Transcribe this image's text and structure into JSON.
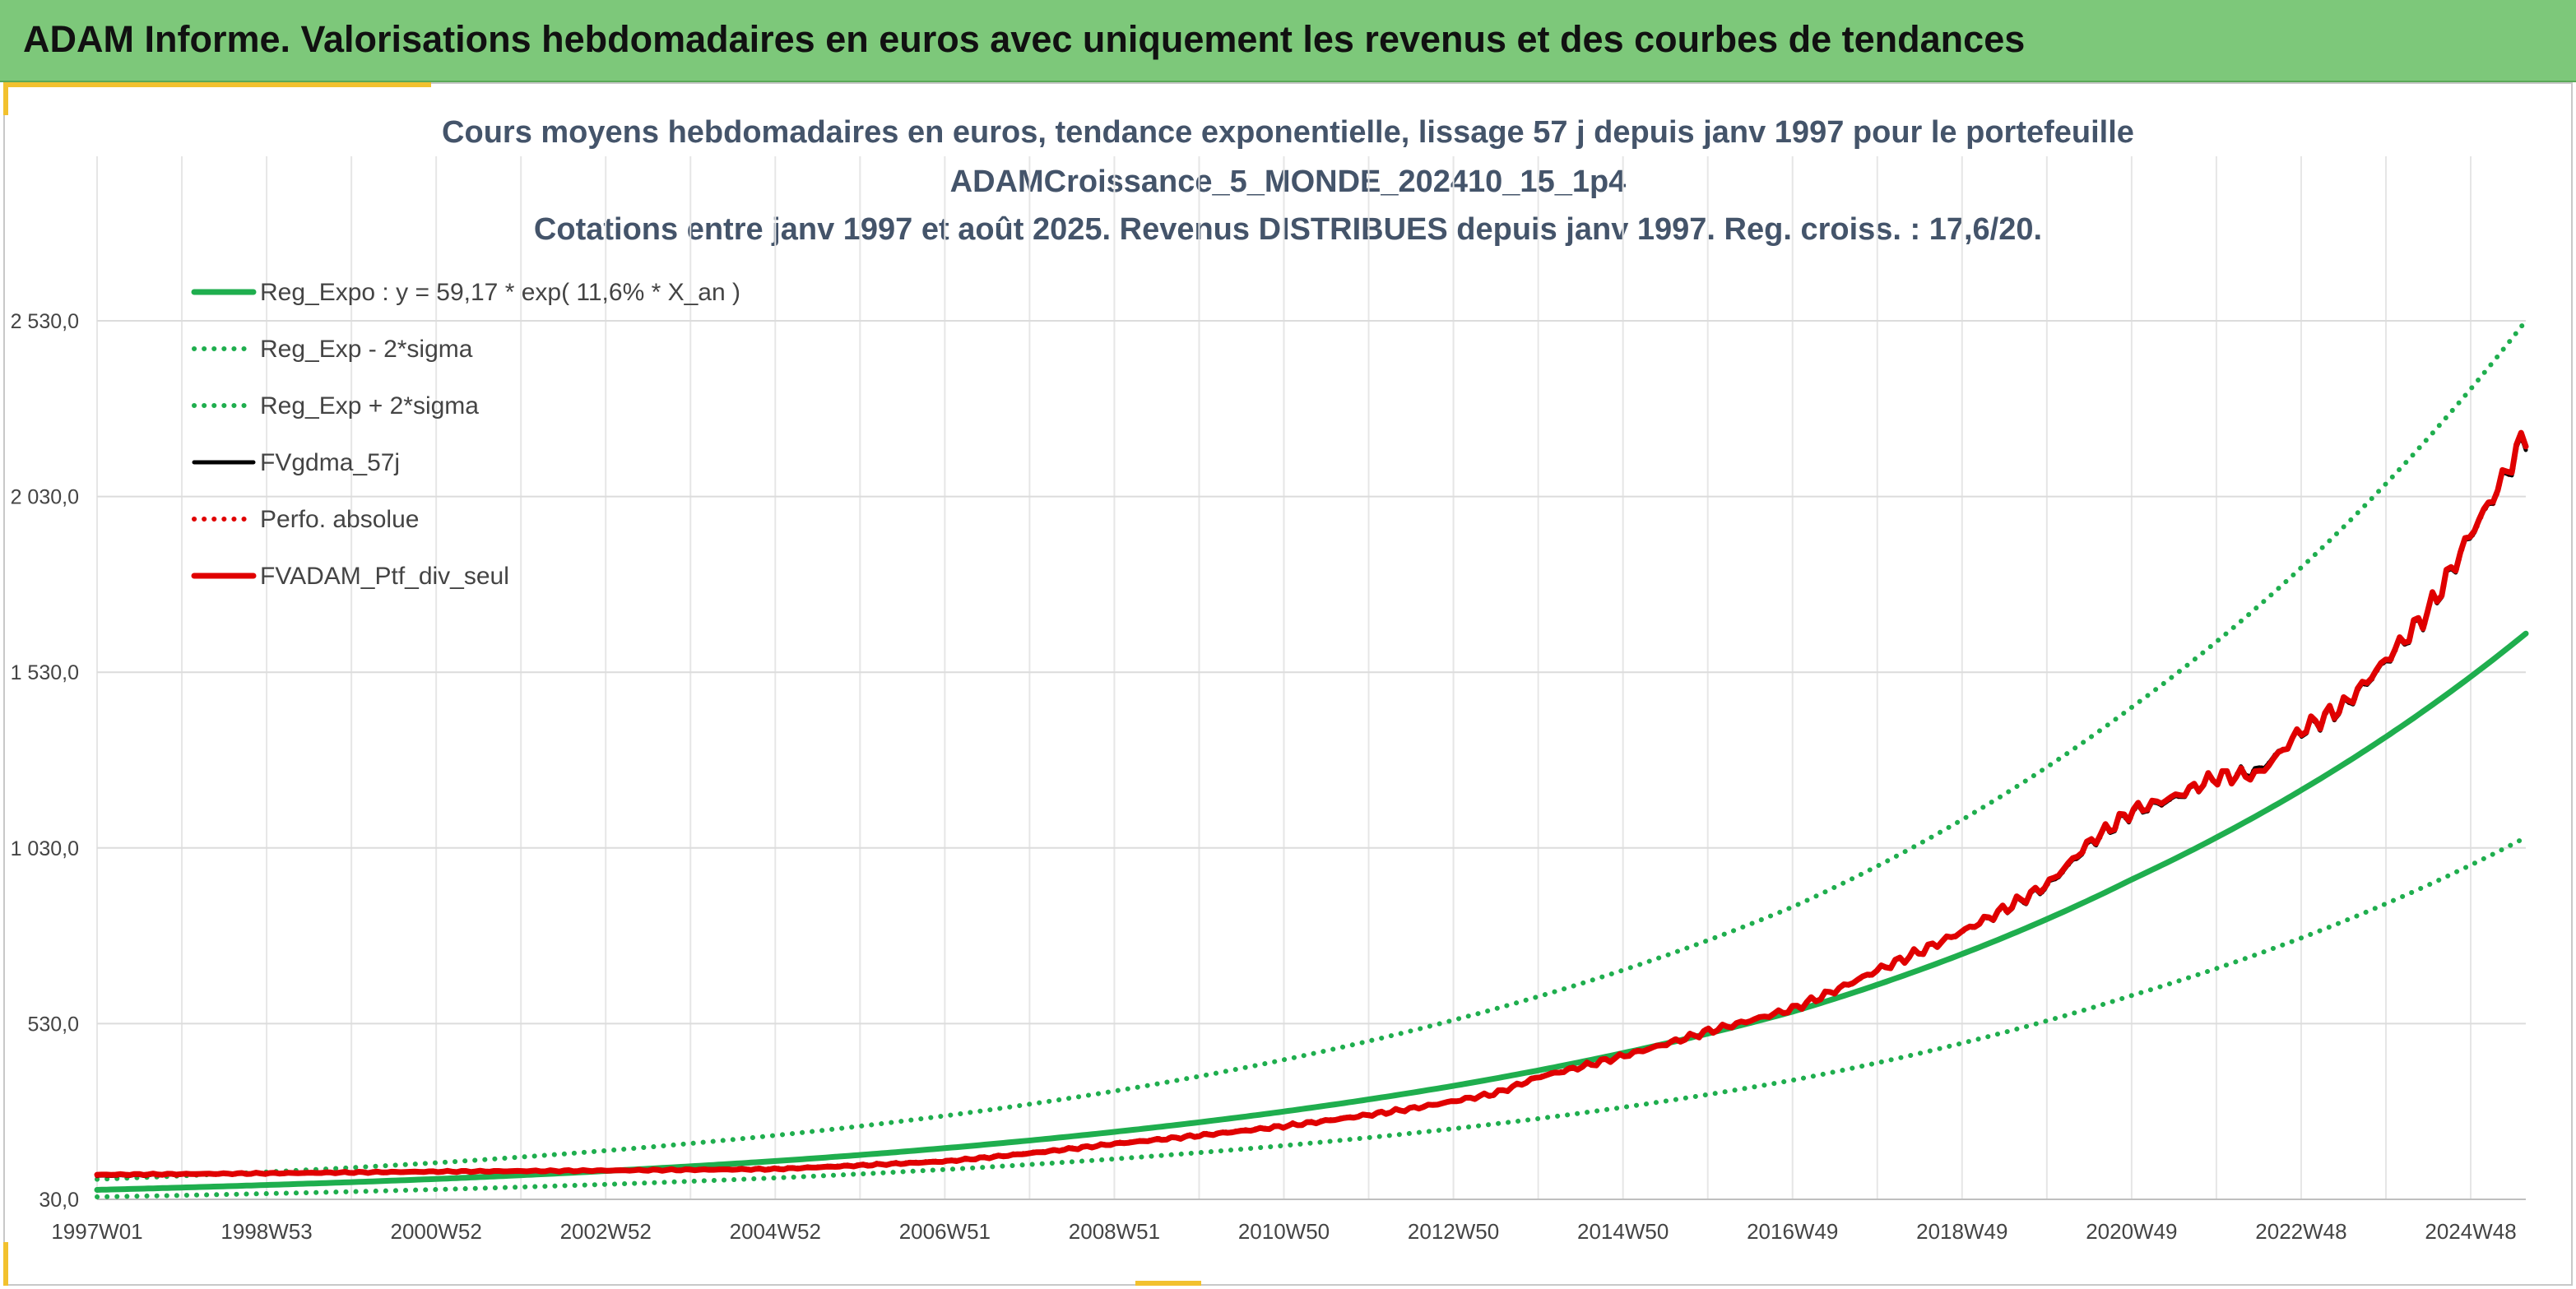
{
  "banner": {
    "title": "ADAM Informe. Valorisations hebdomadaires en euros avec uniquement les revenus et des courbes de tendances"
  },
  "colors": {
    "banner_bg": "#7dc87a",
    "title_text": "#44546a",
    "reg_green": "#1fae4e",
    "black": "#000000",
    "red": "#e00000",
    "grid": "#e3e3e3",
    "accent_yellow": "#f2c12e"
  },
  "chart_data": {
    "type": "line",
    "title": [
      "Cours moyens hebdomadaires en euros, tendance exponentielle, lissage 57 j depuis janv 1997 pour le portefeuille",
      "ADAMCroissance_5_MONDE_202410_15_1p4",
      "Cotations entre janv 1997 et août 2025. Revenus DISTRIBUES depuis janv 1997. Reg. croiss. : 17,6/20."
    ],
    "xlabel": "",
    "ylabel": "",
    "ylim": [
      30,
      2530
    ],
    "yticks": [
      30,
      530,
      1030,
      1530,
      2030,
      2530
    ],
    "ytick_labels": [
      "30,0",
      "530,0",
      "1 030,0",
      "1 530,0",
      "2 030,0",
      "2 530,0"
    ],
    "x_range_years": [
      1997.0,
      2025.65
    ],
    "xtick_years": [
      1997.0,
      1999.0,
      2001.0,
      2003.0,
      2005.0,
      2007.0,
      2009.0,
      2011.0,
      2013.0,
      2015.0,
      2017.0,
      2019.0,
      2021.0,
      2023.0,
      2025.0
    ],
    "xtick_labels": [
      "1997W01",
      "1998W53",
      "2000W52",
      "2002W52",
      "2004W52",
      "2006W51",
      "2008W51",
      "2010W50",
      "2012W50",
      "2014W50",
      "2016W49",
      "2018W49",
      "2020W49",
      "2022W48",
      "2024W48"
    ],
    "grid": true,
    "legend_position": "top-left",
    "series": [
      {
        "name": "Reg_Expo : y = 59,17 * exp( 11,6% *  X_an )",
        "style": "solid-thick",
        "color": "#1fae4e",
        "points": [
          [
            1997.0,
            57
          ],
          [
            2001.0,
            88
          ],
          [
            2005.0,
            139
          ],
          [
            2009.0,
            222
          ],
          [
            2013.0,
            353
          ],
          [
            2017.0,
            564
          ],
          [
            2021.0,
            940
          ],
          [
            2025.65,
            1640
          ]
        ]
      },
      {
        "name": "Reg_Exp - 2*sigma",
        "style": "dotted",
        "color": "#1fae4e",
        "points": [
          [
            1997.0,
            37
          ],
          [
            2001.0,
            58
          ],
          [
            2005.0,
            91
          ],
          [
            2009.0,
            145
          ],
          [
            2013.0,
            231
          ],
          [
            2017.0,
            369
          ],
          [
            2021.0,
            610
          ],
          [
            2025.65,
            1060
          ]
        ]
      },
      {
        "name": "Reg_Exp + 2*sigma",
        "style": "dotted",
        "color": "#1fae4e",
        "points": [
          [
            1997.0,
            87
          ],
          [
            2001.0,
            134
          ],
          [
            2005.0,
            212
          ],
          [
            2009.0,
            338
          ],
          [
            2013.0,
            540
          ],
          [
            2017.0,
            862
          ],
          [
            2021.0,
            1430
          ],
          [
            2025.65,
            2530
          ]
        ]
      },
      {
        "name": "FVgdma_57j",
        "style": "solid",
        "color": "#000000",
        "points": [
          [
            1997.0,
            97
          ],
          [
            1999.0,
            103
          ],
          [
            2001.0,
            108
          ],
          [
            2003.0,
            113
          ],
          [
            2005.0,
            118
          ],
          [
            2007.0,
            140
          ],
          [
            2009.0,
            190
          ],
          [
            2011.0,
            240
          ],
          [
            2012.5,
            290
          ],
          [
            2013.5,
            330
          ],
          [
            2014.0,
            380
          ],
          [
            2015.0,
            440
          ],
          [
            2016.0,
            510
          ],
          [
            2017.0,
            570
          ],
          [
            2018.0,
            680
          ],
          [
            2019.0,
            790
          ],
          [
            2020.0,
            920
          ],
          [
            2020.5,
            1040
          ],
          [
            2021.0,
            1130
          ],
          [
            2021.5,
            1170
          ],
          [
            2022.0,
            1230
          ],
          [
            2022.5,
            1250
          ],
          [
            2023.0,
            1360
          ],
          [
            2023.5,
            1430
          ],
          [
            2024.0,
            1560
          ],
          [
            2024.5,
            1700
          ],
          [
            2025.0,
            1920
          ],
          [
            2025.3,
            2040
          ],
          [
            2025.65,
            2200
          ]
        ]
      },
      {
        "name": "Perfo. absolue",
        "style": "dotted",
        "color": "#e00000",
        "points": [
          [
            1997.0,
            97
          ],
          [
            1999.0,
            103
          ],
          [
            2001.0,
            108
          ],
          [
            2003.0,
            113
          ],
          [
            2005.0,
            118
          ],
          [
            2007.0,
            140
          ],
          [
            2009.0,
            190
          ],
          [
            2011.0,
            240
          ],
          [
            2012.5,
            290
          ],
          [
            2013.5,
            330
          ],
          [
            2014.0,
            380
          ],
          [
            2015.0,
            440
          ],
          [
            2016.0,
            510
          ],
          [
            2017.0,
            570
          ],
          [
            2018.0,
            680
          ],
          [
            2019.0,
            790
          ],
          [
            2020.0,
            920
          ],
          [
            2020.5,
            1040
          ],
          [
            2021.0,
            1130
          ],
          [
            2021.5,
            1170
          ],
          [
            2022.0,
            1230
          ],
          [
            2022.5,
            1250
          ],
          [
            2023.0,
            1360
          ],
          [
            2023.5,
            1430
          ],
          [
            2024.0,
            1560
          ],
          [
            2024.5,
            1700
          ],
          [
            2025.0,
            1920
          ],
          [
            2025.3,
            2040
          ],
          [
            2025.65,
            2200
          ]
        ]
      },
      {
        "name": "FVADAM_Ptf_div_seul",
        "style": "solid-thick",
        "color": "#e00000",
        "points": [
          [
            1997.0,
            100
          ],
          [
            1999.0,
            104
          ],
          [
            2001.0,
            109
          ],
          [
            2003.0,
            112
          ],
          [
            2005.0,
            116
          ],
          [
            2007.0,
            138
          ],
          [
            2009.0,
            188
          ],
          [
            2011.0,
            238
          ],
          [
            2012.5,
            288
          ],
          [
            2013.5,
            332
          ],
          [
            2014.0,
            378
          ],
          [
            2015.0,
            438
          ],
          [
            2016.0,
            508
          ],
          [
            2017.0,
            572
          ],
          [
            2018.0,
            682
          ],
          [
            2019.0,
            792
          ],
          [
            2020.0,
            925
          ],
          [
            2020.5,
            1045
          ],
          [
            2021.0,
            1135
          ],
          [
            2021.5,
            1175
          ],
          [
            2022.0,
            1232
          ],
          [
            2022.5,
            1240
          ],
          [
            2023.0,
            1365
          ],
          [
            2023.5,
            1435
          ],
          [
            2024.0,
            1565
          ],
          [
            2024.5,
            1705
          ],
          [
            2025.0,
            1925
          ],
          [
            2025.3,
            2045
          ],
          [
            2025.65,
            2210
          ]
        ]
      }
    ]
  }
}
